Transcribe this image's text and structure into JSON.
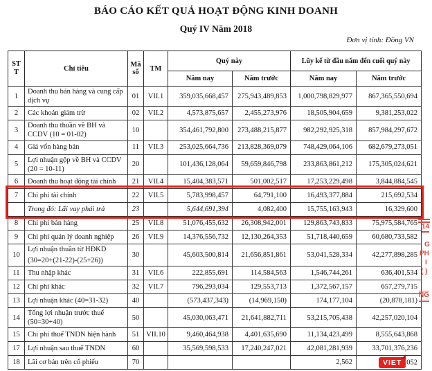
{
  "title": "BÁO CÁO KẾT QUẢ HOẠT ĐỘNG KINH DOANH",
  "subtitle": "Quý IV  Năm 2018",
  "unit_note": "Đơn vị tính: Đồng VN",
  "highlight_color": "#e2231a",
  "table": {
    "header": {
      "stt": "STT",
      "chi_tieu": "Chỉ tiêu",
      "ma_so": "Mã số",
      "tm": "TM",
      "quy_nay": "Quý này",
      "luy_ke": "Lũy kế từ đầu năm đến cuối quý này",
      "nam_nay_q": "Năm nay",
      "nam_truoc_q": "Năm trước",
      "nam_nay_l": "Năm nay",
      "nam_truoc_l": "Năm trước"
    },
    "rows": [
      {
        "stt": "1",
        "label": "Doanh thu bán hàng và cung cấp dịch vụ",
        "code": "01",
        "tm": "VII.1",
        "q_now": "359,035,668,457",
        "q_prev": "275,943,489,853",
        "y_now": "1,000,798,829,977",
        "y_prev": "867,365,550,694"
      },
      {
        "stt": "2",
        "label": "Các khoản giảm trừ",
        "code": "02",
        "tm": "VII.2",
        "q_now": "4,573,875,657",
        "q_prev": "2,455,273,976",
        "y_now": "18,505,904,659",
        "y_prev": "9,381,253,022"
      },
      {
        "stt": "3",
        "label": "Doanh thu thuần về BH và CCDV (10 = 01-02)",
        "code": "10",
        "tm": "",
        "q_now": "354,461,792,800",
        "q_prev": "273,488,215,877",
        "y_now": "982,292,925,318",
        "y_prev": "857,984,297,672"
      },
      {
        "stt": "4",
        "label": "Giá vốn hàng bán",
        "code": "11",
        "tm": "VII.3",
        "q_now": "253,025,664,736",
        "q_prev": "213,828,369,079",
        "y_now": "748,429,064,106",
        "y_prev": "682,679,273,051"
      },
      {
        "stt": "5",
        "label": "Lợi nhuận gộp về BH và CCDV (20 = 10-11)",
        "code": "20",
        "tm": "",
        "q_now": "101,436,128,064",
        "q_prev": "59,659,846,798",
        "y_now": "233,863,861,212",
        "y_prev": "175,305,024,621"
      },
      {
        "stt": "6",
        "label": "Doanh thu hoạt động tài chính",
        "code": "21",
        "tm": "VII.4",
        "q_now": "15,404,383,571",
        "q_prev": "501,002,517",
        "y_now": "17,253,229,498",
        "y_prev": "3,844,884,545"
      },
      {
        "stt": "7",
        "label": "Chi phí tài chính",
        "code": "22",
        "tm": "VII.5",
        "q_now": "5,783,998,457",
        "q_prev": "64,791,100",
        "y_now": "16,493,377,884",
        "y_prev": "215,692,534",
        "hl": true
      },
      {
        "stt": "",
        "label": "Trong đó: Lãi vay phải trả",
        "code": "23",
        "tm": "",
        "q_now": "5,644,691,394",
        "q_prev": "4,082,400",
        "y_now": "15,755,163,943",
        "y_prev": "16,329,600",
        "hl": true,
        "sub": true
      },
      {
        "stt": "8",
        "label": "Chi phí bán hàng",
        "code": "25",
        "tm": "VII.8",
        "q_now": "51,076,455,632",
        "q_prev": "26,308,942,001",
        "y_now": "129,863,743,833",
        "y_prev": "75,975,584,765"
      },
      {
        "stt": "9",
        "label": "Chi phí quản lý doanh nghiệp",
        "code": "26",
        "tm": "VII.9",
        "q_now": "14,376,556,732",
        "q_prev": "12,130,264,353",
        "y_now": "51,718,440,659",
        "y_prev": "60,680,733,582"
      },
      {
        "stt": "10",
        "label": "Lợi nhuận thuần từ HĐKD",
        "label2": "(30=20+(21-22)-(25+26))",
        "code": "30",
        "tm": "",
        "q_now": "45,603,500,814",
        "q_prev": "21,656,851,861",
        "y_now": "53,041,528,334",
        "y_prev": "42,277,898,285"
      },
      {
        "stt": "11",
        "label": "Thu nhập khác",
        "code": "31",
        "tm": "VII.6",
        "q_now": "222,855,691",
        "q_prev": "114,584,563",
        "y_now": "1,546,744,261",
        "y_prev": "636,401,534"
      },
      {
        "stt": "12",
        "label": "Chi phí khác",
        "code": "32",
        "tm": "VII.7",
        "q_now": "796,293,034",
        "q_prev": "129,553,713",
        "y_now": "1,372,567,157",
        "y_prev": "657,279,715"
      },
      {
        "stt": "13",
        "label": "Lợi nhuận khác (40=31-32)",
        "code": "40",
        "tm": "",
        "q_now": "(573,437,343)",
        "q_prev": "(14,969,150)",
        "y_now": "174,177,104",
        "y_prev": "(20,878,181)"
      },
      {
        "stt": "14",
        "label": "Tổng lợi nhuận trước thuế (50=30+40)",
        "code": "50",
        "tm": "",
        "q_now": "45,030,063,471",
        "q_prev": "21,641,882,711",
        "y_now": "53,215,705,438",
        "y_prev": "42,257,020,104"
      },
      {
        "stt": "15",
        "label": "Chi phí thuế TNDN hiện hành",
        "code": "51",
        "tm": "VII.10",
        "q_now": "9,460,464,938",
        "q_prev": "4,401,635,690",
        "y_now": "11,134,423,499",
        "y_prev": "8,555,643,868"
      },
      {
        "stt": "17",
        "label": "Lợi nhuận sau thuế TNDN",
        "code": "60",
        "tm": "",
        "q_now": "35,569,598,533",
        "q_prev": "17,240,247,021",
        "y_now": "42,081,281,939",
        "y_prev": "33,701,376,236"
      },
      {
        "stt": "18",
        "label": "Lãi cơ bản trên cổ phiếu",
        "code": "70",
        "tm": "",
        "q_now": "",
        "q_prev": "",
        "y_now": "2,562",
        "y_prev": "052",
        "badge": "VIET"
      }
    ]
  },
  "margin_marks": {
    "m1": "14",
    "m2": "G",
    "m3": "PH",
    "m4": "I",
    "m5": "( )",
    "m6": "NG"
  }
}
